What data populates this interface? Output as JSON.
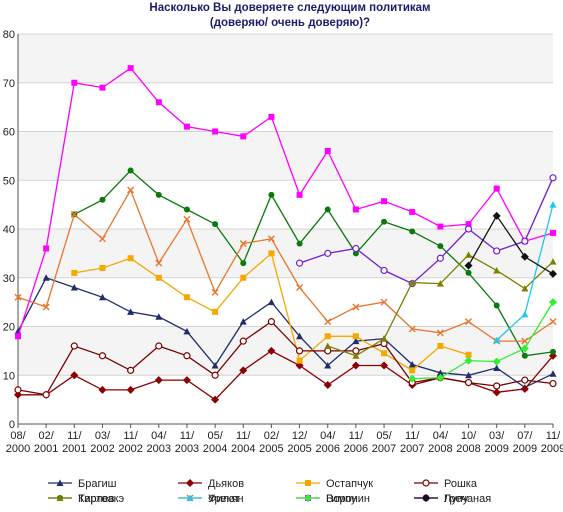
{
  "chart_data": {
    "type": "line",
    "title": "Насколько Вы доверяете следующим политикам",
    "subtitle": "(доверяю/ очень доверяю)?",
    "xlabel": "",
    "ylabel": "",
    "ylim": [
      0,
      80
    ],
    "yticks": [
      "0",
      "10",
      "20",
      "30",
      "40",
      "50",
      "60",
      "70",
      "80"
    ],
    "grid": true,
    "legend_position": "bottom",
    "categories": [
      "08/ 2000",
      "02/ 2001",
      "11/ 2001",
      "03/ 2002",
      "11/ 2002",
      "04/ 2003",
      "11/ 2003",
      "05/ 2004",
      "11/ 2004",
      "02/ 2005",
      "12/ 2005",
      "04/ 2006",
      "11/ 2006",
      "05/ 2007",
      "11/ 2007",
      "04/ 2008",
      "10/ 2008",
      "03/ 2009",
      "07/ 2009",
      "11/ 2009"
    ],
    "tick_labels": [
      [
        "08/",
        "2000"
      ],
      [
        "02/",
        "2001"
      ],
      [
        "11/",
        "2001"
      ],
      [
        "03/",
        "2002"
      ],
      [
        "11/",
        "2002"
      ],
      [
        "04/",
        "2003"
      ],
      [
        "11/",
        "2003"
      ],
      [
        "05/",
        "2004"
      ],
      [
        "11/",
        "2004"
      ],
      [
        "02/",
        "2005"
      ],
      [
        "12/",
        "2005"
      ],
      [
        "04/",
        "2006"
      ],
      [
        "11/",
        "2006"
      ],
      [
        "05/",
        "2007"
      ],
      [
        "11/",
        "2007"
      ],
      [
        "04/",
        "2008"
      ],
      [
        "10/",
        "2008"
      ],
      [
        "03/",
        "2009"
      ],
      [
        "07/",
        "2009"
      ],
      [
        "11/",
        "2009"
      ]
    ],
    "series": [
      {
        "name": "Брагиш",
        "color": "#1f2d6b",
        "marker": "triangle",
        "values": [
          19,
          30,
          28,
          26,
          23,
          22,
          19,
          12,
          21,
          25,
          18,
          12,
          17,
          17.5,
          12.2,
          10.5,
          10,
          11.5,
          7.5,
          10.3
        ]
      },
      {
        "name": "Дьяков",
        "color": "#8b0000",
        "marker": "diamond",
        "values": [
          6,
          6,
          10,
          7,
          7,
          9,
          9,
          5,
          11,
          15,
          12,
          8,
          12,
          12,
          8,
          9.5,
          8.5,
          6.5,
          7.2,
          14
        ]
      },
      {
        "name": "Остапчук",
        "color": "#f5a800",
        "marker": "square",
        "values": [
          null,
          null,
          31,
          32,
          34,
          30,
          26,
          23,
          30,
          35,
          13,
          18,
          18,
          14.5,
          11,
          16,
          14.2,
          null,
          null,
          null
        ]
      },
      {
        "name": "Рошка",
        "color": "#7a0000",
        "marker": "circle",
        "values": [
          7,
          6,
          16,
          14,
          11,
          16,
          14,
          10,
          17,
          21,
          15,
          15,
          15,
          16.5,
          8.5,
          9.5,
          8.5,
          7.8,
          9,
          8.3
        ]
      },
      {
        "name": "Тарлев",
        "color": "#0a7a0a",
        "marker": "circle-filled",
        "values": [
          null,
          null,
          43,
          46,
          52,
          47,
          44,
          41,
          33,
          47,
          37,
          44,
          35,
          41.5,
          39.5,
          36.5,
          31,
          24.3,
          14,
          14.8
        ]
      },
      {
        "name": "Урекян",
        "color": "#e8762d",
        "marker": "cross",
        "values": [
          26,
          24,
          43,
          38,
          48,
          33,
          42,
          27,
          37,
          38,
          28,
          21,
          24,
          25,
          19.5,
          18.7,
          21,
          17,
          17,
          21
        ]
      },
      {
        "name": "Воронин",
        "color": "#ff00ff",
        "marker": "square",
        "values": [
          18,
          36,
          70,
          69,
          73,
          66,
          61,
          60,
          59,
          63,
          47,
          56,
          44,
          45.7,
          43.5,
          40.5,
          41,
          48.3,
          37.5,
          39.2
        ]
      },
      {
        "name": "Лупу",
        "color": "#6f1fd6",
        "marker": "circle",
        "values": [
          null,
          null,
          null,
          null,
          null,
          null,
          null,
          null,
          null,
          null,
          33,
          35,
          36,
          31.5,
          28.8,
          34,
          40,
          35.5,
          37.5,
          50.5
        ]
      },
      {
        "name": "Киртоакэ",
        "color": "#808000",
        "marker": "triangle",
        "values": [
          null,
          null,
          null,
          null,
          null,
          null,
          null,
          null,
          null,
          null,
          null,
          16,
          14,
          17.5,
          29,
          28.8,
          34.7,
          31.5,
          27.8,
          33.3
        ]
      },
      {
        "name": "Филат",
        "color": "#1ec8f0",
        "marker": "triangle",
        "values": [
          null,
          null,
          null,
          null,
          null,
          null,
          null,
          null,
          null,
          null,
          null,
          null,
          null,
          null,
          null,
          null,
          null,
          17.2,
          22.5,
          45
        ]
      },
      {
        "name": "Гимпу",
        "color": "#33ee33",
        "marker": "diamond",
        "values": [
          null,
          null,
          null,
          null,
          null,
          null,
          null,
          null,
          null,
          null,
          null,
          null,
          null,
          null,
          9.3,
          9.5,
          13,
          12.8,
          15.5,
          25
        ]
      },
      {
        "name": "Гречаная",
        "color": "#111111",
        "marker": "diamond",
        "values": [
          null,
          null,
          null,
          null,
          null,
          null,
          null,
          null,
          null,
          null,
          null,
          null,
          null,
          null,
          null,
          null,
          32.5,
          42.7,
          34.3,
          30.8
        ]
      }
    ]
  }
}
